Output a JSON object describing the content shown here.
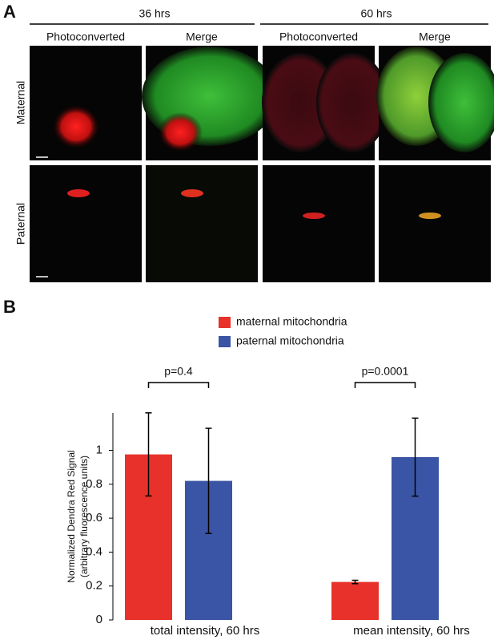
{
  "panel_a": {
    "label": "A",
    "groups": [
      "36 hrs",
      "60 hrs"
    ],
    "columns": [
      "Photoconverted",
      "Merge",
      "Photoconverted",
      "Merge"
    ],
    "rows": [
      "Maternal",
      "Paternal"
    ]
  },
  "chart_data": {
    "type": "bar",
    "label": "B",
    "ylabel": [
      "Normalized Dendra Red Signal",
      "(arbitrary fluorescence units)"
    ],
    "categories": [
      "total intensity, 60 hrs",
      "mean intensity, 60 hrs"
    ],
    "series": [
      {
        "name": "maternal mitochondria",
        "color": "#e8312a",
        "values": [
          0.976,
          0.224
        ],
        "errors": [
          0.245,
          0.01
        ]
      },
      {
        "name": "paternal mitochondria",
        "color": "#3a55a5",
        "values": [
          0.82,
          0.96
        ],
        "errors": [
          0.31,
          0.23
        ]
      }
    ],
    "annotations": [
      "p=0.4",
      "p=0.0001"
    ],
    "ylim": [
      0,
      1.22
    ],
    "yticks": [
      0,
      0.2,
      0.4,
      0.6,
      0.8,
      1
    ]
  }
}
